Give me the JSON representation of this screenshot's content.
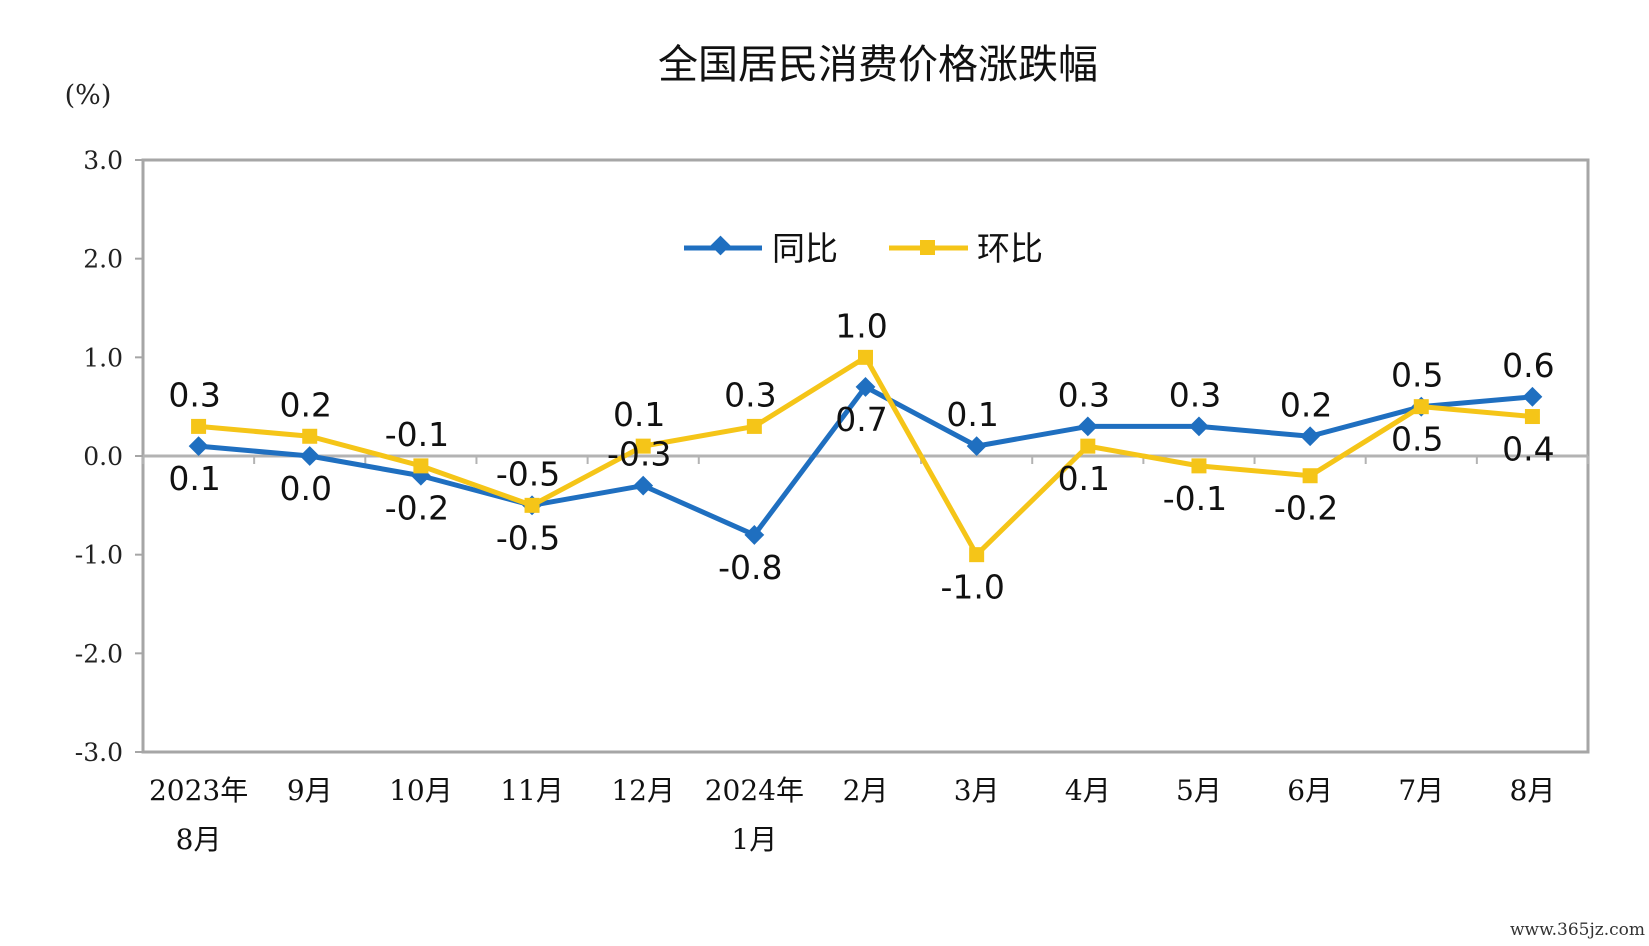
{
  "chart_data": {
    "type": "line",
    "title": "全国居民消费价格涨跌幅",
    "ylabel": "(%)",
    "ylim": [
      -3.0,
      3.0
    ],
    "yticks": [
      "3.0",
      "2.0",
      "1.0",
      "0.0",
      "-1.0",
      "-2.0",
      "-3.0"
    ],
    "ytick_values": [
      3,
      2,
      1,
      0,
      -1,
      -2,
      -3
    ],
    "categories": [
      [
        "2023年",
        "8月"
      ],
      [
        "9月"
      ],
      [
        "10月"
      ],
      [
        "11月"
      ],
      [
        "12月"
      ],
      [
        "2024年",
        "1月"
      ],
      [
        "2月"
      ],
      [
        "3月"
      ],
      [
        "4月"
      ],
      [
        "5月"
      ],
      [
        "6月"
      ],
      [
        "7月"
      ],
      [
        "8月"
      ]
    ],
    "legend_position": "top-center",
    "grid": false,
    "series": [
      {
        "name": "同比",
        "color": "#1f6fc0",
        "marker": "diamond",
        "values": [
          0.1,
          0.0,
          -0.2,
          -0.5,
          -0.3,
          -0.8,
          0.7,
          0.1,
          0.3,
          0.3,
          0.2,
          0.5,
          0.6
        ],
        "labels": [
          "0.1",
          "0.0",
          "-0.2",
          "-0.5",
          "-0.3",
          "-0.8",
          "0.7",
          "0.1",
          "0.3",
          "0.3",
          "0.2",
          "0.5",
          "0.6"
        ],
        "label_side": [
          "below",
          "below",
          "below",
          "below",
          "above",
          "below",
          "below",
          "above",
          "above",
          "above",
          "above",
          "above",
          "above"
        ]
      },
      {
        "name": "环比",
        "color": "#f5c518",
        "marker": "square",
        "values": [
          0.3,
          0.2,
          -0.1,
          -0.5,
          0.1,
          0.3,
          1.0,
          -1.0,
          0.1,
          -0.1,
          -0.2,
          0.5,
          0.4
        ],
        "labels": [
          "0.3",
          "0.2",
          "-0.1",
          "-0.5",
          "0.1",
          "0.3",
          "1.0",
          "-1.0",
          "0.1",
          "-0.1",
          "-0.2",
          "0.5",
          "0.4"
        ],
        "label_side": [
          "above",
          "above",
          "above",
          "above",
          "above",
          "above",
          "above",
          "below",
          "below",
          "below",
          "below",
          "below",
          "below"
        ]
      }
    ]
  },
  "watermark": "www.365jz.com"
}
